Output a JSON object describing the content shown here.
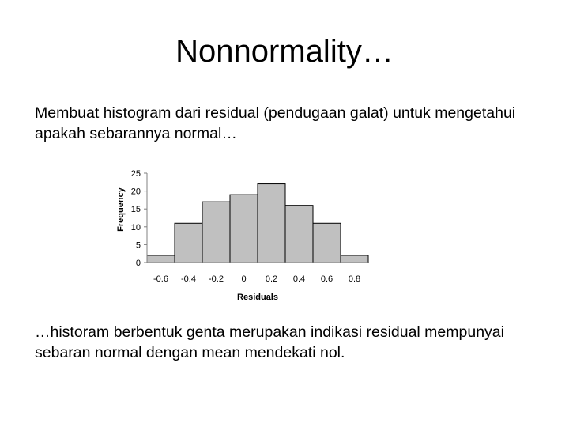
{
  "slide": {
    "title": "Nonnormality…",
    "intro_text": "Membuat histogram dari residual (pendugaan galat) untuk mengetahui apakah sebarannya normal…",
    "conclusion_text": "…historam berbentuk genta merupakan indikasi residual mempunyai sebaran normal dengan mean mendekati nol."
  },
  "chart_data": {
    "type": "bar",
    "categories": [
      "-0.7 to -0.5",
      "-0.5 to -0.3",
      "-0.3 to -0.1",
      "-0.1 to 0.1",
      "0.1 to 0.3",
      "0.3 to 0.5",
      "0.5 to 0.7",
      "0.7 to 0.9"
    ],
    "bin_edges": [
      -0.7,
      -0.5,
      -0.3,
      -0.1,
      0.1,
      0.3,
      0.5,
      0.7,
      0.9
    ],
    "values": [
      2,
      11,
      17,
      19,
      22,
      16,
      11,
      2
    ],
    "title": "",
    "xlabel": "Residuals",
    "ylabel": "Frequency",
    "xticks": [
      "-0.6",
      "-0.4",
      "-0.2",
      "0",
      "0.2",
      "0.4",
      "0.6",
      "0.8"
    ],
    "yticks": [
      "0",
      "5",
      "10",
      "15",
      "20",
      "25"
    ],
    "ylim": [
      0,
      25
    ],
    "grid": false,
    "bar_color": "#c0c0c0",
    "bar_edge_color": "#000000"
  }
}
